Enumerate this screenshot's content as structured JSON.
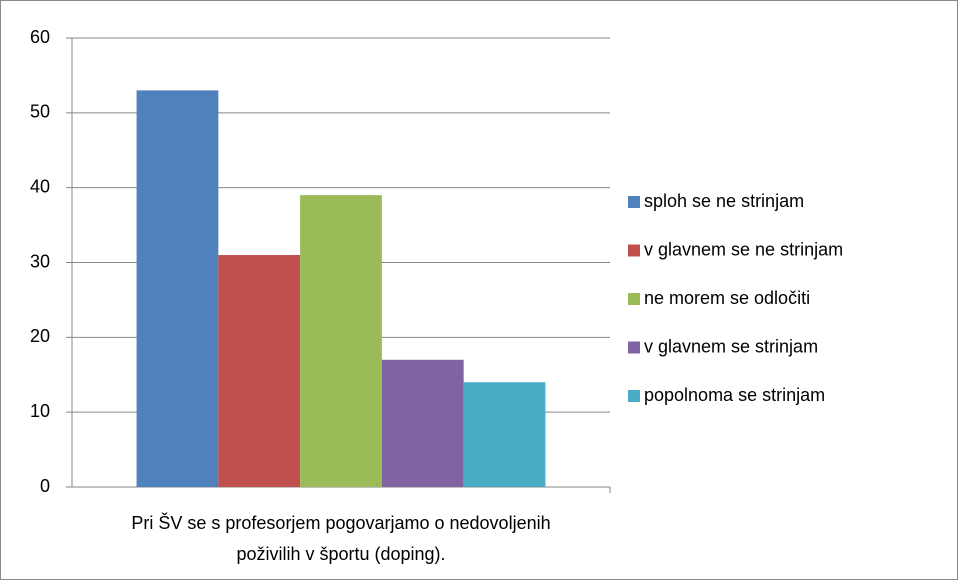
{
  "chart_data": {
    "type": "bar",
    "categories": [
      "Pri ŠV se s profesorjem  pogovarjamo o nedovoljenih poživilih v športu (doping)."
    ],
    "series": [
      {
        "name": "sploh se ne strinjam",
        "color": "#4f81bd",
        "values": [
          53
        ]
      },
      {
        "name": "v glavnem se ne strinjam",
        "color": "#c0504d",
        "values": [
          31
        ]
      },
      {
        "name": "ne morem se odločiti",
        "color": "#9bbb59",
        "values": [
          39
        ]
      },
      {
        "name": "v glavnem se strinjam",
        "color": "#8064a2",
        "values": [
          17
        ]
      },
      {
        "name": "popolnoma se strinjam",
        "color": "#4bacc6",
        "values": [
          14
        ]
      }
    ],
    "ylim": [
      0,
      60
    ],
    "yticks": [
      0,
      10,
      20,
      30,
      40,
      50,
      60
    ],
    "grid": true,
    "legend": "right"
  }
}
